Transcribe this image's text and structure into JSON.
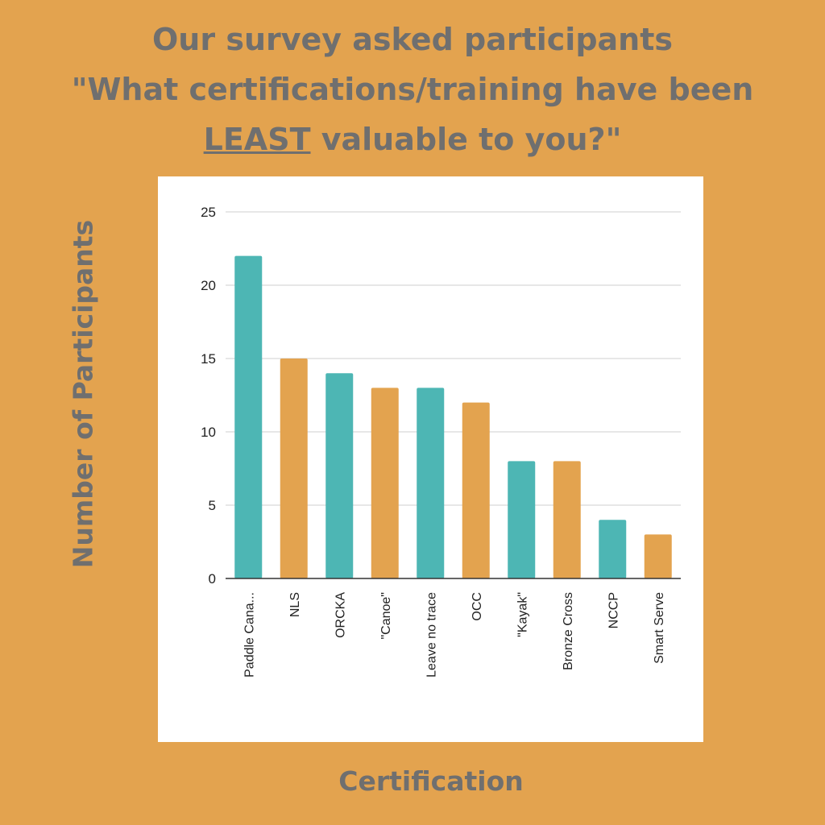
{
  "header": {
    "line1": "Our survey asked participants",
    "line2": "\"What certifications/training have been",
    "line3_emph": "LEAST",
    "line3_rest": " valuable to you?\""
  },
  "colors": {
    "background": "#e3a34f",
    "teal": "#4db6b4",
    "orange": "#e3a34f",
    "text": "#6f6f6f"
  },
  "chart_data": {
    "type": "bar",
    "ylabel": "Number of Participants",
    "xlabel": "Certification",
    "ylim": [
      0,
      25
    ],
    "yticks": [
      0,
      5,
      10,
      15,
      20,
      25
    ],
    "grid": true,
    "categories": [
      "Paddle Cana...",
      "NLS",
      "ORCKA",
      "\"Canoe\"",
      "Leave no trace",
      "OCC",
      "\"Kayak\"",
      "Bronze Cross",
      "NCCP",
      "Smart Serve"
    ],
    "values": [
      22,
      15,
      14,
      13,
      13,
      12,
      8,
      8,
      4,
      3
    ],
    "bar_colors": [
      "#4db6b4",
      "#e3a34f",
      "#4db6b4",
      "#e3a34f",
      "#4db6b4",
      "#e3a34f",
      "#4db6b4",
      "#e3a34f",
      "#4db6b4",
      "#e3a34f"
    ]
  }
}
